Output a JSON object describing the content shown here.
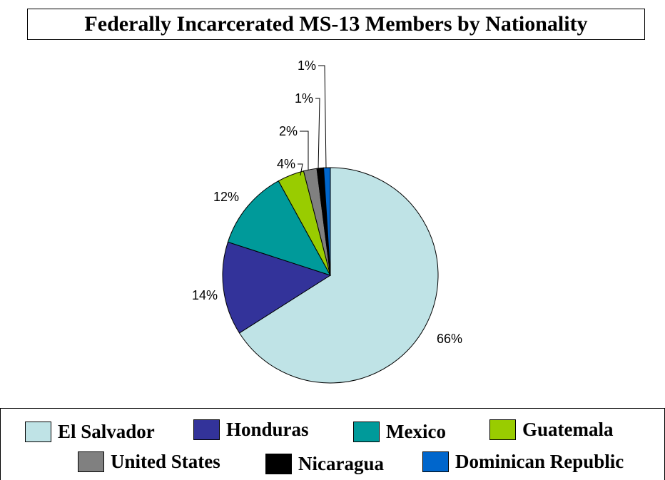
{
  "chart_data": {
    "type": "pie",
    "title": "Federally Incarcerated MS-13 Members by Nationality",
    "categories": [
      "El Salvador",
      "Honduras",
      "Mexico",
      "Guatemala",
      "United States",
      "Nicaragua",
      "Dominican Republic"
    ],
    "values": [
      66,
      14,
      12,
      4,
      2,
      1,
      1
    ],
    "labels": [
      "66%",
      "14%",
      "12%",
      "4%",
      "2%",
      "1%",
      "1%"
    ],
    "colors": [
      "#bfe3e6",
      "#33339a",
      "#009a9a",
      "#99cc00",
      "#808080",
      "#000000",
      "#0066cc"
    ],
    "legend_position": "bottom"
  }
}
